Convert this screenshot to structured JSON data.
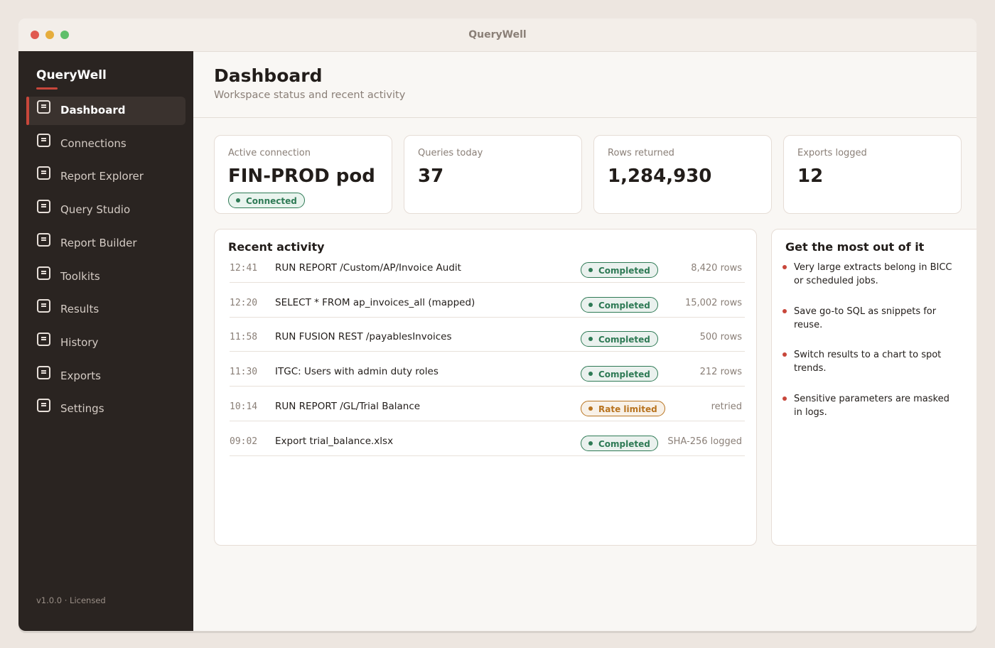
{
  "window": {
    "title": "QueryWell"
  },
  "sidebar": {
    "brand": "QueryWell",
    "items": [
      "Dashboard",
      "Connections",
      "Report Explorer",
      "Query Studio",
      "Report Builder",
      "Toolkits",
      "Results",
      "History",
      "Exports",
      "Settings"
    ],
    "footer": "v1.0.0 · Licensed"
  },
  "header": {
    "title": "Dashboard",
    "subtitle": "Workspace status and recent activity"
  },
  "stats": [
    {
      "label": "Active connection",
      "value": "FIN-PROD pod",
      "badge": "Connected"
    },
    {
      "label": "Queries today",
      "value": 37
    },
    {
      "label": "Rows returned",
      "value": "1,284,930"
    },
    {
      "label": "Exports logged",
      "value": 12
    }
  ],
  "activity": {
    "title": "Recent activity",
    "rows": [
      {
        "time": "12:41",
        "query": "RUN REPORT /Custom/AP/Invoice Audit",
        "status": "Completed",
        "status_color": "#2e7a55",
        "detail": "8,420 rows"
      },
      {
        "time": "12:20",
        "query": "SELECT * FROM ap_invoices_all (mapped)",
        "status": "Completed",
        "status_color": "#2e7a55",
        "detail": "15,002 rows"
      },
      {
        "time": "11:58",
        "query": "RUN FUSION REST /payablesInvoices",
        "status": "Completed",
        "status_color": "#2e7a55",
        "detail": "500 rows"
      },
      {
        "time": "11:30",
        "query": "ITGC: Users with admin duty roles",
        "status": "Completed",
        "status_color": "#2e7a55",
        "detail": "212 rows"
      },
      {
        "time": "10:14",
        "query": "RUN REPORT /GL/Trial Balance",
        "status": "Rate limited",
        "status_color": "#b8731f",
        "detail": "retried"
      },
      {
        "time": "09:02",
        "query": "Export trial_balance.xlsx",
        "status": "Completed",
        "status_color": "#2e7a55",
        "detail": "SHA-256 logged"
      }
    ]
  },
  "tips": {
    "title": "Get the most out of it",
    "items": [
      "Very large extracts belong in BICC or scheduled jobs.",
      "Save go-to SQL as snippets for reuse.",
      "Switch results to a chart to spot trends.",
      "Sensitive parameters are masked in logs."
    ]
  }
}
